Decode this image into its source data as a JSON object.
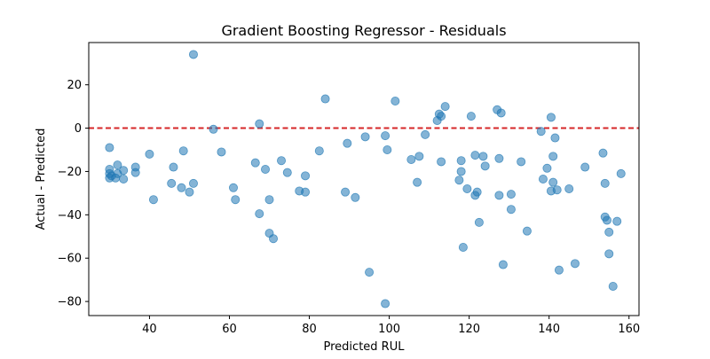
{
  "chart_data": {
    "type": "scatter",
    "title": "Gradient Boosting Regressor - Residuals",
    "xlabel": "Predicted RUL",
    "ylabel": "Actual - Predicted",
    "xlim": [
      24.8,
      162.5
    ],
    "ylim": [
      -86.5,
      39.5
    ],
    "xticks": [
      40,
      60,
      80,
      100,
      120,
      140,
      160
    ],
    "yticks": [
      -80,
      -60,
      -40,
      -20,
      0,
      20
    ],
    "grid": false,
    "reference_line": {
      "y": 0,
      "style": "dashed",
      "color": "#d62728"
    },
    "point_color": "#1f77b4",
    "series": [
      {
        "name": "Residuals",
        "points": [
          [
            30,
            -9
          ],
          [
            30,
            -19
          ],
          [
            30,
            -21
          ],
          [
            30,
            -23
          ],
          [
            30.5,
            -22
          ],
          [
            31.5,
            -23
          ],
          [
            32,
            -17
          ],
          [
            32,
            -21
          ],
          [
            33.5,
            -19.5
          ],
          [
            33.5,
            -23.5
          ],
          [
            36.5,
            -20.5
          ],
          [
            36.5,
            -18
          ],
          [
            40,
            -12
          ],
          [
            41,
            -33
          ],
          [
            45.5,
            -25.5
          ],
          [
            46,
            -18
          ],
          [
            48,
            -27.5
          ],
          [
            48.5,
            -10.5
          ],
          [
            50,
            -29.5
          ],
          [
            51,
            -25.5
          ],
          [
            51,
            34
          ],
          [
            56,
            -0.5
          ],
          [
            58,
            -11
          ],
          [
            61,
            -27.5
          ],
          [
            61.5,
            -33
          ],
          [
            66.5,
            -16
          ],
          [
            67.5,
            2
          ],
          [
            67.5,
            -39.5
          ],
          [
            69,
            -19
          ],
          [
            70,
            -48.5
          ],
          [
            70,
            -33
          ],
          [
            71,
            -51
          ],
          [
            73,
            -15
          ],
          [
            74.5,
            -20.5
          ],
          [
            77.5,
            -29
          ],
          [
            79,
            -22
          ],
          [
            79,
            -29.5
          ],
          [
            82.5,
            -10.5
          ],
          [
            84,
            13.5
          ],
          [
            89,
            -29.5
          ],
          [
            89.5,
            -7
          ],
          [
            91.5,
            -32
          ],
          [
            94,
            -4
          ],
          [
            95,
            -66.5
          ],
          [
            99,
            -3.5
          ],
          [
            99,
            -81
          ],
          [
            99.5,
            -10
          ],
          [
            101.5,
            12.5
          ],
          [
            105.5,
            -14.5
          ],
          [
            107,
            -25
          ],
          [
            107.5,
            -13
          ],
          [
            109,
            -3
          ],
          [
            112,
            3.5
          ],
          [
            112.5,
            6.5
          ],
          [
            113,
            5.5
          ],
          [
            113,
            -15.5
          ],
          [
            114,
            10
          ],
          [
            117.5,
            -24
          ],
          [
            118,
            -15
          ],
          [
            118,
            -20
          ],
          [
            118.5,
            -55
          ],
          [
            119.5,
            -28
          ],
          [
            120.5,
            5.5
          ],
          [
            121.5,
            -31
          ],
          [
            121.5,
            -12.5
          ],
          [
            122,
            -29.5
          ],
          [
            122.5,
            -43.5
          ],
          [
            123.5,
            -13
          ],
          [
            124,
            -17.5
          ],
          [
            127,
            8.5
          ],
          [
            127.5,
            -31
          ],
          [
            127.5,
            -14
          ],
          [
            128,
            7
          ],
          [
            128.5,
            -63
          ],
          [
            130.5,
            -30.5
          ],
          [
            130.5,
            -37.5
          ],
          [
            133,
            -15.5
          ],
          [
            134.5,
            -47.5
          ],
          [
            138,
            -1.5
          ],
          [
            138.5,
            -23.5
          ],
          [
            139.5,
            -18.5
          ],
          [
            140.5,
            5
          ],
          [
            140.5,
            -29
          ],
          [
            141,
            -25
          ],
          [
            141,
            -13
          ],
          [
            141.5,
            -4.5
          ],
          [
            142,
            -28.5
          ],
          [
            142.5,
            -65.5
          ],
          [
            145,
            -28
          ],
          [
            146.5,
            -62.5
          ],
          [
            149,
            -18
          ],
          [
            153.5,
            -11.5
          ],
          [
            154,
            -25.5
          ],
          [
            154,
            -41
          ],
          [
            154.5,
            -42.5
          ],
          [
            155,
            -58
          ],
          [
            155,
            -48
          ],
          [
            156,
            -73
          ],
          [
            157,
            -43
          ],
          [
            158,
            -21
          ]
        ]
      }
    ]
  }
}
